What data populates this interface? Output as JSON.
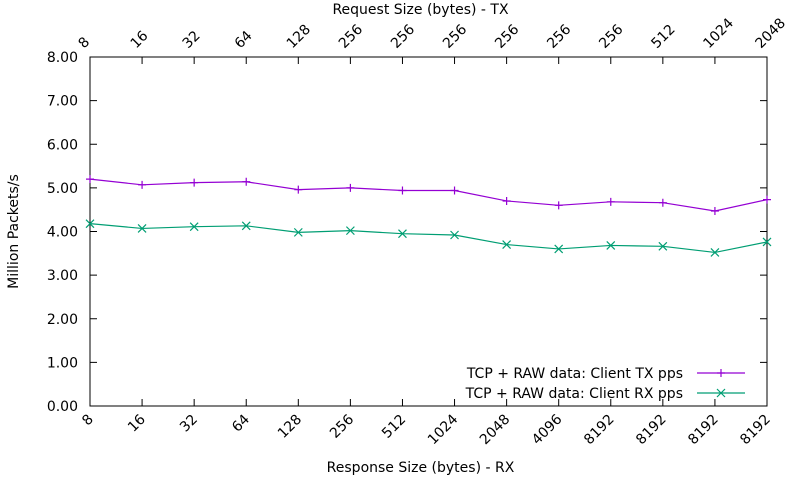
{
  "chart_data": {
    "type": "line",
    "title": "",
    "top_axis_label": "Request Size (bytes) - TX",
    "xlabel": "Response Size (bytes) - RX",
    "ylabel": "Million Packets/s",
    "ylim": [
      0,
      8
    ],
    "yticks": [
      "0.00",
      "1.00",
      "2.00",
      "3.00",
      "4.00",
      "5.00",
      "6.00",
      "7.00",
      "8.00"
    ],
    "x_categories_bottom": [
      "8",
      "16",
      "32",
      "64",
      "128",
      "256",
      "512",
      "1024",
      "2048",
      "4096",
      "8192",
      "8192",
      "8192",
      "8192"
    ],
    "x_categories_top": [
      "8",
      "16",
      "32",
      "64",
      "128",
      "256",
      "256",
      "256",
      "256",
      "256",
      "256",
      "512",
      "1024",
      "2048"
    ],
    "grid": false,
    "legend_position": "bottom-right",
    "series": [
      {
        "name": "TCP + RAW data: Client TX pps",
        "color": "#9400d3",
        "marker": "plus",
        "values": [
          5.2,
          5.07,
          5.12,
          5.14,
          4.96,
          5.0,
          4.94,
          4.94,
          4.7,
          4.6,
          4.68,
          4.66,
          4.47,
          4.73
        ]
      },
      {
        "name": "TCP + RAW data: Client RX pps",
        "color": "#009e73",
        "marker": "x",
        "values": [
          4.18,
          4.07,
          4.11,
          4.13,
          3.98,
          4.02,
          3.95,
          3.92,
          3.7,
          3.6,
          3.68,
          3.66,
          3.52,
          3.76
        ]
      }
    ]
  }
}
